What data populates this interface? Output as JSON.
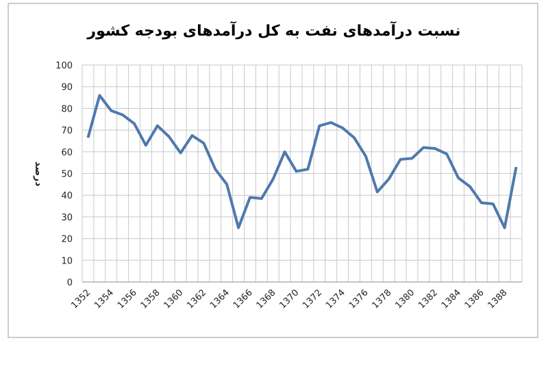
{
  "chart_data": {
    "type": "line",
    "title": "نسبت درآمدهای نفت به کل درآمدهای بودجه کشور",
    "y_label": "درصد",
    "categories": [
      "1352",
      null,
      "1354",
      null,
      "1356",
      null,
      "1358",
      null,
      "1360",
      null,
      "1362",
      null,
      "1364",
      null,
      "1366",
      null,
      "1368",
      null,
      "1370",
      null,
      "1372",
      null,
      "1374",
      null,
      "1376",
      null,
      "1378",
      null,
      "1380",
      null,
      "1382",
      null,
      "1384",
      null,
      "1386",
      null,
      "1388",
      null
    ],
    "series": [
      {
        "color": "#4f79ad",
        "values": [
          66.5,
          86,
          79,
          77,
          73,
          63,
          72,
          67,
          59.5,
          67.5,
          64,
          52,
          45,
          25,
          39,
          38.5,
          47.5,
          60,
          51,
          52,
          72,
          73.5,
          71,
          66.5,
          58,
          41.5,
          47.5,
          56.5,
          57,
          62,
          61.5,
          59,
          48,
          44,
          36.5,
          36,
          25,
          53
        ]
      }
    ],
    "ylim": [
      0,
      100
    ],
    "yticks": [
      0,
      10,
      20,
      30,
      40,
      50,
      60,
      70,
      80,
      90,
      100
    ],
    "grid": true
  }
}
